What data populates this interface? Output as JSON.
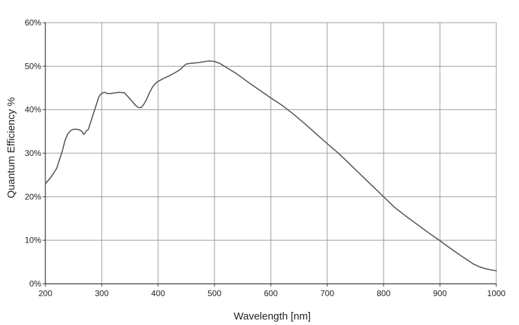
{
  "chart_data": {
    "type": "line",
    "title": "",
    "xlabel": "Wavelength [nm]",
    "ylabel": "Quantum Efficiency %",
    "xlim": [
      200,
      1000
    ],
    "ylim": [
      0,
      60
    ],
    "x_ticks": [
      200,
      300,
      400,
      500,
      600,
      700,
      800,
      900,
      1000
    ],
    "y_ticks": [
      0,
      10,
      20,
      30,
      40,
      50,
      60
    ],
    "x_tick_labels": [
      "200",
      "300",
      "400",
      "500",
      "600",
      "700",
      "800",
      "900",
      "1000"
    ],
    "y_tick_labels": [
      "0%",
      "10%",
      "20%",
      "30%",
      "40%",
      "50%",
      "60%"
    ],
    "grid": true,
    "legend": "none",
    "line_color": "#555555",
    "grid_color": "#999999",
    "series": [
      {
        "x": [
          200,
          210,
          220,
          230,
          235,
          240,
          245,
          250,
          255,
          260,
          265,
          268,
          270,
          273,
          276,
          280,
          285,
          290,
          295,
          300,
          305,
          310,
          315,
          320,
          330,
          340,
          350,
          360,
          365,
          370,
          375,
          380,
          385,
          390,
          395,
          400,
          410,
          420,
          430,
          440,
          445,
          450,
          455,
          460,
          470,
          480,
          490,
          500,
          510,
          520,
          540,
          560,
          580,
          600,
          620,
          640,
          660,
          680,
          700,
          720,
          740,
          760,
          780,
          800,
          820,
          840,
          860,
          880,
          900,
          920,
          940,
          960,
          970,
          980,
          990,
          1000
        ],
        "y": [
          23.0,
          24.5,
          26.5,
          30.5,
          33.0,
          34.5,
          35.2,
          35.5,
          35.5,
          35.4,
          35.0,
          34.3,
          34.6,
          35.2,
          35.4,
          37.0,
          39.0,
          41.0,
          43.0,
          43.8,
          44.0,
          43.7,
          43.7,
          43.8,
          44.0,
          43.9,
          42.5,
          41.0,
          40.5,
          40.5,
          41.3,
          42.5,
          44.0,
          45.2,
          46.0,
          46.5,
          47.2,
          47.8,
          48.5,
          49.3,
          50.0,
          50.5,
          50.6,
          50.7,
          50.8,
          51.0,
          51.2,
          51.1,
          50.6,
          49.8,
          48.2,
          46.3,
          44.5,
          42.7,
          41.0,
          39.0,
          36.8,
          34.5,
          32.2,
          30.0,
          27.5,
          25.0,
          22.5,
          20.0,
          17.5,
          15.5,
          13.6,
          11.7,
          9.9,
          8.0,
          6.2,
          4.5,
          3.9,
          3.5,
          3.2,
          3.0
        ]
      }
    ]
  }
}
